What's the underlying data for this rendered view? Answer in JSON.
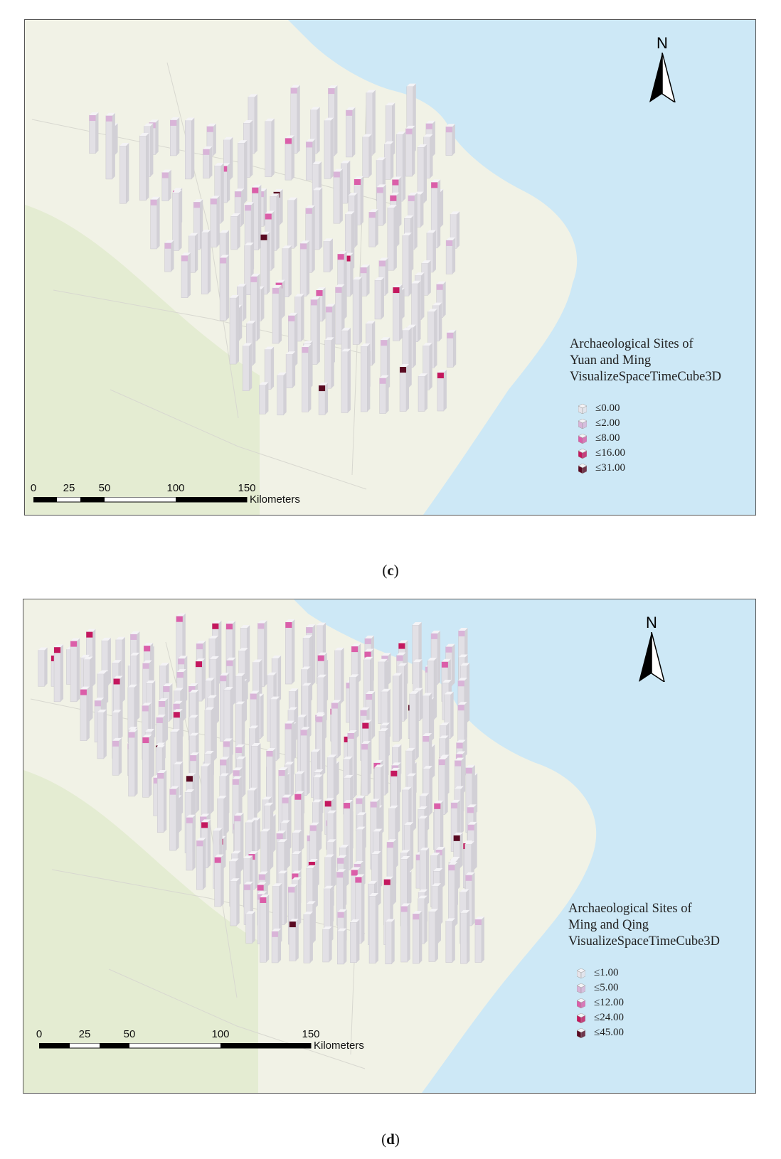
{
  "panels": [
    {
      "id": "c",
      "caption_letter": "c",
      "legend": {
        "title_lines": [
          "Archaeological Sites of",
          "Yuan and Ming",
          "VisualizeSpaceTimeCube3D"
        ],
        "classes": [
          {
            "label": "≤0.00",
            "color": "#e6e4ea"
          },
          {
            "label": "≤2.00",
            "color": "#d9b4d8"
          },
          {
            "label": "≤8.00",
            "color": "#db5ea9"
          },
          {
            "label": "≤16.00",
            "color": "#c4175e"
          },
          {
            "label": "≤31.00",
            "color": "#5a0a22"
          }
        ]
      },
      "north_label": "N",
      "scale": {
        "ticks": [
          "0",
          "25",
          "50",
          "100",
          "150"
        ],
        "unit": "Kilometers"
      }
    },
    {
      "id": "d",
      "caption_letter": "d",
      "legend": {
        "title_lines": [
          "Archaeological Sites of",
          "Ming and Qing",
          "VisualizeSpaceTimeCube3D"
        ],
        "classes": [
          {
            "label": "≤1.00",
            "color": "#e6e4ea"
          },
          {
            "label": "≤5.00",
            "color": "#d9b4d8"
          },
          {
            "label": "≤12.00",
            "color": "#db5ea9"
          },
          {
            "label": "≤24.00",
            "color": "#c4175e"
          },
          {
            "label": "≤45.00",
            "color": "#5a0a22"
          }
        ]
      },
      "north_label": "N",
      "scale": {
        "ticks": [
          "0",
          "25",
          "50",
          "100",
          "150"
        ],
        "unit": "Kilometers"
      }
    }
  ],
  "colors": {
    "land": "#f1f2e6",
    "land_green": "#e4ecd2",
    "sea": "#cde8f6",
    "column_side": "#e2e0e5",
    "column_top": "#f4f3f6"
  }
}
